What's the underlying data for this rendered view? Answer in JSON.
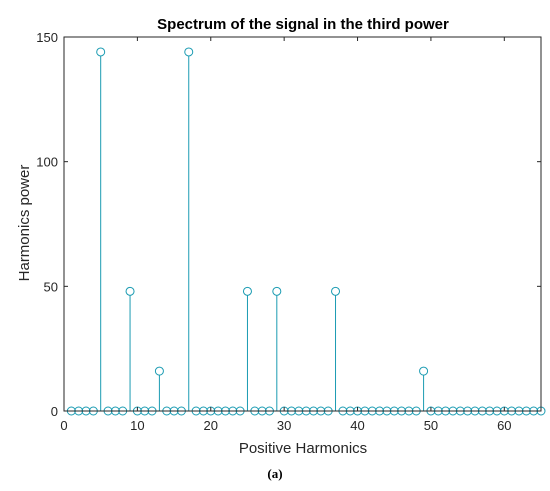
{
  "caption": "(a)",
  "chart_data": {
    "type": "stem",
    "title": "Spectrum of the signal in the third power",
    "xlabel": "Positive Harmonics",
    "ylabel": "Harmonics power",
    "xlim": [
      0,
      65
    ],
    "ylim": [
      0,
      150
    ],
    "xticks": [
      0,
      10,
      20,
      30,
      40,
      50,
      60
    ],
    "yticks": [
      0,
      50,
      100,
      150
    ],
    "grid": false,
    "color": "#1a9bb2",
    "x": [
      1,
      2,
      3,
      4,
      5,
      6,
      7,
      8,
      9,
      10,
      11,
      12,
      13,
      14,
      15,
      16,
      17,
      18,
      19,
      20,
      21,
      22,
      23,
      24,
      25,
      26,
      27,
      28,
      29,
      30,
      31,
      32,
      33,
      34,
      35,
      36,
      37,
      38,
      39,
      40,
      41,
      42,
      43,
      44,
      45,
      46,
      47,
      48,
      49,
      50,
      51,
      52,
      53,
      54,
      55,
      56,
      57,
      58,
      59,
      60,
      61,
      62,
      63,
      64,
      65
    ],
    "values": [
      0,
      0,
      0,
      0,
      144,
      0,
      0,
      0,
      48,
      0,
      0,
      0,
      16,
      0,
      0,
      0,
      144,
      0,
      0,
      0,
      0,
      0,
      0,
      0,
      48,
      0,
      0,
      0,
      48,
      0,
      0,
      0,
      0,
      0,
      0,
      0,
      48,
      0,
      0,
      0,
      0,
      0,
      0,
      0,
      0,
      0,
      0,
      0,
      16,
      0,
      0,
      0,
      0,
      0,
      0,
      0,
      0,
      0,
      0,
      0,
      0,
      0,
      0,
      0,
      0
    ]
  }
}
